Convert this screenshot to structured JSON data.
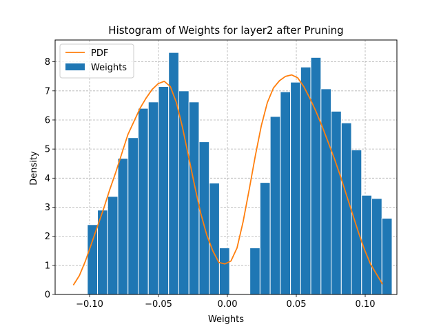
{
  "chart_data": {
    "type": "bar",
    "title": "Histogram of Weights for layer2 after Pruning",
    "xlabel": "Weights",
    "ylabel": "Density",
    "xlim": [
      -0.125,
      0.123
    ],
    "ylim": [
      0,
      8.75
    ],
    "xticks": [
      -0.1,
      -0.05,
      0.0,
      0.05,
      0.1
    ],
    "xtick_labels": [
      "−0.10",
      "−0.05",
      "0.00",
      "0.05",
      "0.10"
    ],
    "yticks": [
      0,
      1,
      2,
      3,
      4,
      5,
      6,
      7,
      8
    ],
    "ytick_labels": [
      "0",
      "1",
      "2",
      "3",
      "4",
      "5",
      "6",
      "7",
      "8"
    ],
    "grid": true,
    "legend_position": "top-left",
    "series": [
      {
        "name": "Weights",
        "kind": "histogram",
        "color": "#1f77b4",
        "bin_start": -0.1016,
        "bin_width": 0.00737,
        "values": [
          2.4,
          2.9,
          3.37,
          4.68,
          5.39,
          6.4,
          6.62,
          7.15,
          8.32,
          7.0,
          6.62,
          5.25,
          3.83,
          1.6,
          0.0,
          0.02,
          1.6,
          3.85,
          6.12,
          6.97,
          7.3,
          7.82,
          8.15,
          7.07,
          6.3,
          5.9,
          4.97,
          3.41,
          3.3,
          2.62
        ]
      },
      {
        "name": "PDF",
        "kind": "line",
        "color": "#ff7f0e",
        "x": [
          -0.1118,
          -0.1074,
          -0.103,
          -0.0986,
          -0.0942,
          -0.0898,
          -0.0854,
          -0.081,
          -0.0766,
          -0.0722,
          -0.0678,
          -0.0634,
          -0.059,
          -0.0546,
          -0.0502,
          -0.0458,
          -0.0414,
          -0.037,
          -0.0326,
          -0.0282,
          -0.0238,
          -0.0194,
          -0.015,
          -0.0106,
          -0.0062,
          -0.0018,
          0.0026,
          0.007,
          0.0114,
          0.0158,
          0.0202,
          0.0246,
          0.029,
          0.0334,
          0.0378,
          0.0422,
          0.0466,
          0.051,
          0.0554,
          0.0598,
          0.0642,
          0.0686,
          0.073,
          0.0774,
          0.0818,
          0.0862,
          0.0906,
          0.095,
          0.0994,
          0.1038,
          0.1082,
          0.1126
        ],
        "values": [
          0.32,
          0.65,
          1.15,
          1.75,
          2.35,
          2.95,
          3.6,
          4.2,
          4.85,
          5.5,
          5.95,
          6.4,
          6.75,
          7.05,
          7.25,
          7.33,
          7.15,
          6.6,
          5.75,
          4.75,
          3.75,
          2.8,
          2.05,
          1.5,
          1.1,
          1.05,
          1.15,
          1.6,
          2.5,
          3.6,
          4.75,
          5.8,
          6.6,
          7.1,
          7.35,
          7.5,
          7.55,
          7.45,
          7.15,
          6.75,
          6.3,
          5.8,
          5.25,
          4.7,
          4.1,
          3.45,
          2.8,
          2.15,
          1.55,
          1.05,
          0.7,
          0.35
        ]
      }
    ]
  }
}
